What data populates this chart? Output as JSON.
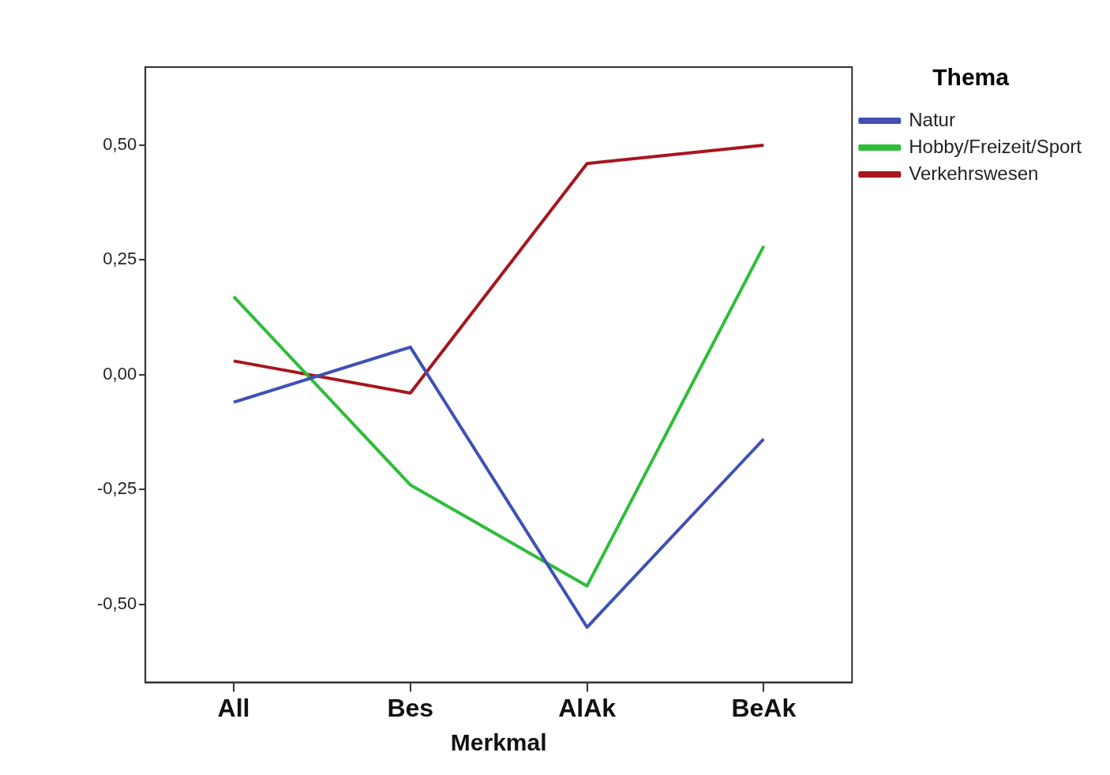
{
  "chart_data": {
    "type": "line",
    "xlabel": "Merkmal",
    "legend_title": "Thema",
    "categories": [
      "All",
      "Bes",
      "AlAk",
      "BeAk"
    ],
    "series": [
      {
        "name": "Natur",
        "color": "#3f51b5",
        "values": [
          -0.06,
          0.06,
          -0.55,
          -0.14
        ]
      },
      {
        "name": "Hobby/Freizeit/Sport",
        "color": "#2ebd3a",
        "values": [
          0.17,
          -0.24,
          -0.46,
          0.28
        ]
      },
      {
        "name": "Verkehrswesen",
        "color": "#a8151d",
        "values": [
          0.03,
          -0.04,
          0.46,
          0.5
        ]
      }
    ],
    "ylim": [
      -0.67,
      0.67
    ],
    "yticks": [
      {
        "value": -0.5,
        "label": "-0,50"
      },
      {
        "value": -0.25,
        "label": "-0,25"
      },
      {
        "value": 0,
        "label": "0,00"
      },
      {
        "value": 0.25,
        "label": "0,25"
      },
      {
        "value": 0.5,
        "label": "0,50"
      }
    ],
    "grid": false,
    "legend": "top right",
    "marker": "none",
    "line_style": "solid"
  }
}
